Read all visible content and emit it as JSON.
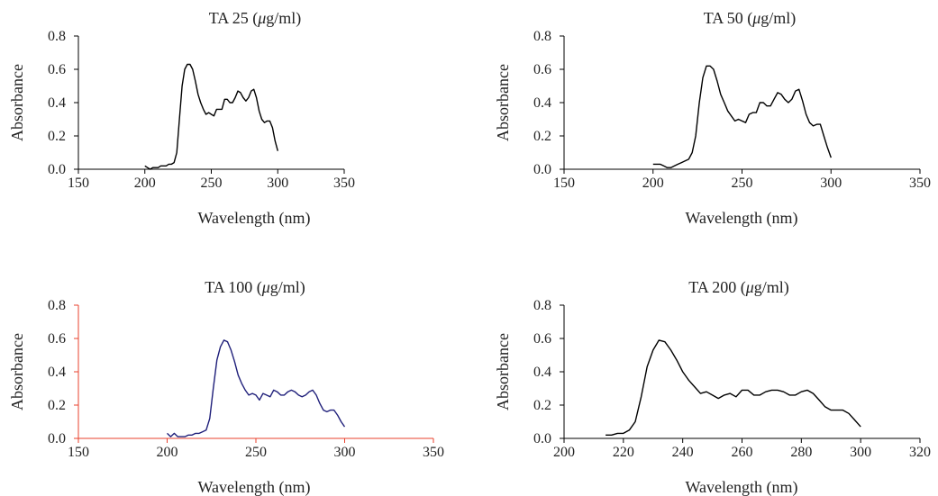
{
  "chart_data": [
    {
      "type": "line",
      "title": "TA 25 (μg/ml)",
      "title_main": "TA 25 (",
      "title_mu": "μ",
      "title_unit": "g/ml)",
      "xlabel": "Wavelength (nm)",
      "ylabel": "Absorbance",
      "xlim": [
        150,
        350
      ],
      "xticks": [
        150,
        200,
        250,
        300,
        350
      ],
      "xtick_labels": [
        "150",
        "200",
        "250",
        "300",
        "350"
      ],
      "ylim": [
        0,
        0.8
      ],
      "yticks": [
        0,
        0.2,
        0.4,
        0.6,
        0.8
      ],
      "ytick_labels": [
        "0.0",
        "0.2",
        "0.4",
        "0.6",
        "0.8"
      ],
      "grid": false,
      "line_color": "#000000",
      "axis_color": "#000000",
      "series": [
        {
          "x": [
            200,
            202,
            204,
            206,
            208,
            210,
            212,
            214,
            216,
            218,
            220,
            222,
            224,
            226,
            228,
            230,
            232,
            234,
            236,
            238,
            240,
            242,
            244,
            246,
            248,
            250,
            252,
            254,
            256,
            258,
            260,
            262,
            264,
            266,
            268,
            270,
            272,
            274,
            276,
            278,
            280,
            282,
            284,
            286,
            288,
            290,
            292,
            294,
            296,
            298,
            300
          ],
          "y": [
            0.02,
            0.01,
            0.0,
            0.01,
            0.01,
            0.01,
            0.02,
            0.02,
            0.02,
            0.03,
            0.03,
            0.04,
            0.1,
            0.3,
            0.5,
            0.6,
            0.63,
            0.63,
            0.6,
            0.53,
            0.45,
            0.4,
            0.36,
            0.33,
            0.34,
            0.33,
            0.32,
            0.36,
            0.36,
            0.36,
            0.42,
            0.42,
            0.4,
            0.4,
            0.43,
            0.47,
            0.46,
            0.43,
            0.41,
            0.43,
            0.47,
            0.48,
            0.43,
            0.35,
            0.3,
            0.28,
            0.29,
            0.29,
            0.25,
            0.17,
            0.11
          ]
        }
      ]
    },
    {
      "type": "line",
      "title": "TA 50 (μg/ml)",
      "title_main": "TA 50 (",
      "title_mu": "μ",
      "title_unit": "g/ml)",
      "xlabel": "Wavelength (nm)",
      "ylabel": "Absorbance",
      "xlim": [
        150,
        350
      ],
      "xticks": [
        150,
        200,
        250,
        300,
        350
      ],
      "xtick_labels": [
        "150",
        "200",
        "250",
        "300",
        "350"
      ],
      "ylim": [
        0,
        0.8
      ],
      "yticks": [
        0,
        0.2,
        0.4,
        0.6,
        0.8
      ],
      "ytick_labels": [
        "0.0",
        "0.2",
        "0.4",
        "0.6",
        "0.8"
      ],
      "grid": false,
      "line_color": "#000000",
      "axis_color": "#000000",
      "series": [
        {
          "x": [
            200,
            202,
            204,
            206,
            208,
            210,
            212,
            214,
            216,
            218,
            220,
            222,
            224,
            226,
            228,
            230,
            232,
            234,
            236,
            238,
            240,
            242,
            244,
            246,
            248,
            250,
            252,
            254,
            256,
            258,
            260,
            262,
            264,
            266,
            268,
            270,
            272,
            274,
            276,
            278,
            280,
            282,
            284,
            286,
            288,
            290,
            292,
            294,
            296,
            298,
            300
          ],
          "y": [
            0.03,
            0.03,
            0.03,
            0.02,
            0.01,
            0.01,
            0.02,
            0.03,
            0.04,
            0.05,
            0.06,
            0.1,
            0.2,
            0.4,
            0.55,
            0.62,
            0.62,
            0.6,
            0.53,
            0.45,
            0.4,
            0.35,
            0.32,
            0.29,
            0.3,
            0.29,
            0.28,
            0.33,
            0.34,
            0.34,
            0.4,
            0.4,
            0.38,
            0.38,
            0.42,
            0.46,
            0.45,
            0.42,
            0.4,
            0.42,
            0.47,
            0.48,
            0.41,
            0.33,
            0.28,
            0.26,
            0.27,
            0.27,
            0.2,
            0.13,
            0.07
          ]
        }
      ]
    },
    {
      "type": "line",
      "title": "TA 100 (μg/ml)",
      "title_main": "TA 100 (",
      "title_mu": "μ",
      "title_unit": "g/ml)",
      "xlabel": "Wavelength (nm)",
      "ylabel": "Absorbance",
      "xlim": [
        150,
        350
      ],
      "xticks": [
        150,
        200,
        250,
        300,
        350
      ],
      "xtick_labels": [
        "150",
        "200",
        "250",
        "300",
        "350"
      ],
      "ylim": [
        0,
        0.8
      ],
      "yticks": [
        0,
        0.2,
        0.4,
        0.6,
        0.8
      ],
      "ytick_labels": [
        "0.0",
        "0.2",
        "0.4",
        "0.6",
        "0.8"
      ],
      "grid": false,
      "line_color": "#1f1f7a",
      "axis_color": "#e8422e",
      "series": [
        {
          "x": [
            200,
            202,
            204,
            206,
            208,
            210,
            212,
            214,
            216,
            218,
            220,
            222,
            224,
            226,
            228,
            230,
            232,
            234,
            236,
            238,
            240,
            242,
            244,
            246,
            248,
            250,
            252,
            254,
            256,
            258,
            260,
            262,
            264,
            266,
            268,
            270,
            272,
            274,
            276,
            278,
            280,
            282,
            284,
            286,
            288,
            290,
            292,
            294,
            296,
            298,
            300
          ],
          "y": [
            0.03,
            0.01,
            0.03,
            0.01,
            0.01,
            0.01,
            0.02,
            0.02,
            0.03,
            0.03,
            0.04,
            0.05,
            0.12,
            0.3,
            0.47,
            0.55,
            0.59,
            0.58,
            0.53,
            0.46,
            0.38,
            0.33,
            0.29,
            0.26,
            0.27,
            0.26,
            0.23,
            0.27,
            0.26,
            0.25,
            0.29,
            0.28,
            0.26,
            0.26,
            0.28,
            0.29,
            0.28,
            0.26,
            0.25,
            0.26,
            0.28,
            0.29,
            0.26,
            0.21,
            0.17,
            0.16,
            0.17,
            0.17,
            0.14,
            0.1,
            0.07
          ]
        }
      ]
    },
    {
      "type": "line",
      "title": "TA 200 (μg/ml)",
      "title_main": "TA 200 (",
      "title_mu": "μ",
      "title_unit": "g/ml)",
      "xlabel": "Wavelength (nm)",
      "ylabel": "Absorbance",
      "xlim": [
        200,
        320
      ],
      "xticks": [
        200,
        220,
        240,
        260,
        280,
        300,
        320
      ],
      "xtick_labels": [
        "200",
        "220",
        "240",
        "260",
        "280",
        "300",
        "320"
      ],
      "ylim": [
        0,
        0.8
      ],
      "yticks": [
        0,
        0.2,
        0.4,
        0.6,
        0.8
      ],
      "ytick_labels": [
        "0.0",
        "0.2",
        "0.4",
        "0.6",
        "0.8"
      ],
      "grid": false,
      "line_color": "#000000",
      "axis_color": "#000000",
      "series": [
        {
          "x": [
            214,
            216,
            218,
            220,
            222,
            224,
            226,
            228,
            230,
            232,
            234,
            236,
            238,
            240,
            242,
            244,
            246,
            248,
            250,
            252,
            254,
            256,
            258,
            260,
            262,
            264,
            266,
            268,
            270,
            272,
            274,
            276,
            278,
            280,
            282,
            284,
            286,
            288,
            290,
            292,
            294,
            296,
            298,
            300
          ],
          "y": [
            0.02,
            0.02,
            0.03,
            0.03,
            0.05,
            0.1,
            0.25,
            0.43,
            0.53,
            0.59,
            0.58,
            0.53,
            0.47,
            0.4,
            0.35,
            0.31,
            0.27,
            0.28,
            0.26,
            0.24,
            0.26,
            0.27,
            0.25,
            0.29,
            0.29,
            0.26,
            0.26,
            0.28,
            0.29,
            0.29,
            0.28,
            0.26,
            0.26,
            0.28,
            0.29,
            0.27,
            0.23,
            0.19,
            0.17,
            0.17,
            0.17,
            0.15,
            0.11,
            0.07
          ]
        }
      ]
    }
  ]
}
